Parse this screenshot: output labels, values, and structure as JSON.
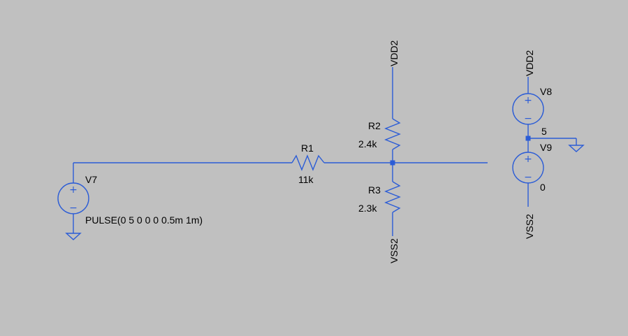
{
  "colors": {
    "background": "#c0c0c0",
    "wire": "#2b5cd6",
    "text": "#000000"
  },
  "components": {
    "v7": {
      "name": "V7",
      "value": "PULSE(0 5 0 0 0 0.5m 1m)"
    },
    "v8": {
      "name": "V8"
    },
    "v9": {
      "name": "V9",
      "value": "0"
    },
    "r1": {
      "name": "R1",
      "value": "11k"
    },
    "r2": {
      "name": "R2",
      "value": "2.4k"
    },
    "r3": {
      "name": "R3",
      "value": "2.3k"
    }
  },
  "labels": {
    "r2_top_net": "VDD2",
    "r3_bottom_net": "VSS2",
    "v8_top_net": "VDD2",
    "v9_bottom_net": "VSS2",
    "v8_v9_mid_value": "5"
  },
  "symbols": {
    "plus": "+",
    "minus": "−"
  }
}
